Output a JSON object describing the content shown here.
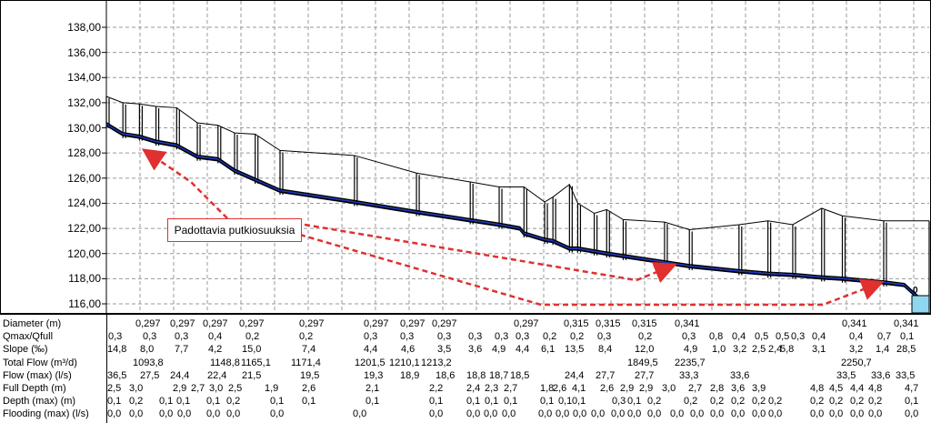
{
  "profile": {
    "y_axis_labels": [
      "138,00",
      "136,00",
      "134,00",
      "132,00",
      "130,00",
      "128,00",
      "126,00",
      "124,00",
      "122,00",
      "120,00",
      "118,00",
      "116,00"
    ],
    "ylim": [
      115.5,
      140
    ],
    "ground_line": [
      [
        0,
        132.5
      ],
      [
        4,
        132
      ],
      [
        8,
        131.9
      ],
      [
        12,
        131.7
      ],
      [
        17,
        131.6
      ],
      [
        22,
        130.4
      ],
      [
        27,
        130.2
      ],
      [
        31,
        129.6
      ],
      [
        36,
        129.5
      ],
      [
        42,
        128.2
      ],
      [
        60,
        127.8
      ],
      [
        75,
        126.4
      ],
      [
        88,
        125.7
      ],
      [
        95,
        125.3
      ],
      [
        101,
        125.3
      ],
      [
        106,
        124.1
      ],
      [
        108,
        124.5
      ],
      [
        112,
        125.5
      ],
      [
        114,
        124.0
      ],
      [
        118,
        123.2
      ],
      [
        121,
        123.5
      ],
      [
        125,
        122.7
      ],
      [
        135,
        122.5
      ],
      [
        141,
        121.9
      ],
      [
        153,
        122.3
      ],
      [
        160,
        122.6
      ],
      [
        166,
        122.3
      ],
      [
        173,
        123.6
      ],
      [
        178,
        123.0
      ],
      [
        188,
        122.6
      ],
      [
        199,
        122.6
      ]
    ],
    "pipe_invert": [
      [
        0,
        130.2
      ],
      [
        4,
        129.4
      ],
      [
        8,
        129.2
      ],
      [
        12,
        128.8
      ],
      [
        17,
        128.5
      ],
      [
        22,
        127.6
      ],
      [
        27,
        127.4
      ],
      [
        31,
        126.5
      ],
      [
        42,
        124.9
      ],
      [
        60,
        124.0
      ],
      [
        75,
        123.2
      ],
      [
        95,
        122.2
      ],
      [
        100,
        121.9
      ],
      [
        101,
        121.5
      ],
      [
        106,
        121.0
      ],
      [
        108,
        120.9
      ],
      [
        112,
        120.3
      ],
      [
        114,
        120.3
      ],
      [
        121,
        119.9
      ],
      [
        125,
        119.7
      ],
      [
        135,
        119.2
      ],
      [
        141,
        118.9
      ],
      [
        153,
        118.5
      ],
      [
        160,
        118.3
      ],
      [
        166,
        118.2
      ],
      [
        173,
        118.0
      ],
      [
        178,
        117.9
      ],
      [
        188,
        117.6
      ],
      [
        193,
        117.4
      ],
      [
        196,
        116.5
      ],
      [
        199,
        115.8
      ]
    ],
    "callout_text": "Padottavia putkiosuuksia",
    "outlet_label": "0",
    "colors": {
      "pipe_inner": "#1a36c8",
      "pipe_outer": "#000000",
      "water": "#8fd7f0",
      "arrow": "#e03030",
      "grid": "#9a9a9a"
    }
  },
  "table": {
    "rows": [
      {
        "label": "Diameter (m)",
        "cells": [
          [
            "149",
            "0,297"
          ],
          [
            "187",
            "0,297"
          ],
          [
            "223",
            "0,297"
          ],
          [
            "263",
            "0,297"
          ],
          [
            "329",
            "0,297"
          ],
          [
            "400",
            "0,297"
          ],
          [
            "440",
            "0,297"
          ],
          [
            "475",
            "0,297"
          ],
          [
            "565",
            "0,297"
          ],
          [
            "620",
            "0,315"
          ],
          [
            "655",
            "0,315"
          ],
          [
            "695",
            "0,315"
          ],
          [
            "742",
            "0,341"
          ],
          [
            "926",
            "0,341"
          ],
          [
            "983",
            "0,341"
          ]
        ]
      },
      {
        "label": "Qmax/Qfull",
        "cells": [
          [
            "119",
            "0,3"
          ],
          [
            "157",
            "0,3"
          ],
          [
            "192",
            "0,3"
          ],
          [
            "229",
            "0,4"
          ],
          [
            "270",
            "0,2"
          ],
          [
            "329",
            "0,2"
          ],
          [
            "400",
            "0,3"
          ],
          [
            "440",
            "0,3"
          ],
          [
            "481",
            "0,3"
          ],
          [
            "515",
            "0,3"
          ],
          [
            "544",
            "0,3"
          ],
          [
            "567",
            "0,3"
          ],
          [
            "597",
            "0,2"
          ],
          [
            "627",
            "0,2"
          ],
          [
            "657",
            "0,3"
          ],
          [
            "702",
            "0,2"
          ],
          [
            "750",
            "0,3"
          ],
          [
            "780",
            "0,8"
          ],
          [
            "805",
            "0,4"
          ],
          [
            "830",
            "0,5"
          ],
          [
            "853",
            "0,5"
          ],
          [
            "870",
            "0,3"
          ],
          [
            "893",
            "0,4"
          ],
          [
            "934",
            "0,4"
          ],
          [
            "965",
            "0,7"
          ],
          [
            "990",
            "0,1"
          ]
        ]
      },
      {
        "label": "Slope (‰)",
        "cells": [
          [
            "118",
            "14,8"
          ],
          [
            "154",
            "8,0"
          ],
          [
            "192",
            "7,7"
          ],
          [
            "229",
            "4,2"
          ],
          [
            "266",
            "15,0"
          ],
          [
            "332",
            "7,4"
          ],
          [
            "400",
            "4,4"
          ],
          [
            "441",
            "4,6"
          ],
          [
            "481",
            "3,5"
          ],
          [
            "515",
            "3,6"
          ],
          [
            "541",
            "4,9"
          ],
          [
            "567",
            "4,4"
          ],
          [
            "595",
            "6,1"
          ],
          [
            "621",
            "13,5"
          ],
          [
            "658",
            "8,4"
          ],
          [
            "698",
            "12,0"
          ],
          [
            "752",
            "4,9"
          ],
          [
            "783",
            "1,0"
          ],
          [
            "806",
            "3,2"
          ],
          [
            "827",
            "2,5"
          ],
          [
            "845",
            "2,4"
          ],
          [
            "858",
            "5,8"
          ],
          [
            "893",
            "3,1"
          ],
          [
            "934",
            "3,2"
          ],
          [
            "963",
            "1,4"
          ],
          [
            "986",
            "28,5"
          ]
        ]
      },
      {
        "label": "Total Flow (m³/d)",
        "cells": [
          [
            "146",
            "1093,8"
          ],
          [
            "231",
            "1148,8"
          ],
          [
            "265",
            "1165,1"
          ],
          [
            "320",
            "1171,4"
          ],
          [
            "390",
            "1201,5"
          ],
          [
            "428",
            "1210,1"
          ],
          [
            "463",
            "1213,2"
          ],
          [
            "690",
            "1849,5"
          ],
          [
            "742",
            "2235,7"
          ],
          [
            "925",
            "2250,7"
          ]
        ]
      },
      {
        "label": "Flow (max) (l/s)",
        "cells": [
          [
            "118",
            "36,5"
          ],
          [
            "154",
            "27,5"
          ],
          [
            "187",
            "24,4"
          ],
          [
            "228",
            "22,4"
          ],
          [
            "266",
            "21,5"
          ],
          [
            "330",
            "19,5"
          ],
          [
            "400",
            "19,3"
          ],
          [
            "440",
            "18,9"
          ],
          [
            "479",
            "18,6"
          ],
          [
            "513",
            "18,8"
          ],
          [
            "538",
            "18,7"
          ],
          [
            "561",
            "18,5"
          ],
          [
            "621",
            "24,4"
          ],
          [
            "655",
            "27,7"
          ],
          [
            "698",
            "27,7"
          ],
          [
            "747",
            "33,3"
          ],
          [
            "803",
            "33,6"
          ],
          [
            "920",
            "33,5"
          ],
          [
            "958",
            "33,6"
          ],
          [
            "985",
            "33,5"
          ]
        ]
      },
      {
        "label": "Full Depth (m)",
        "cells": [
          [
            "118",
            "2,5"
          ],
          [
            "142",
            "3,0"
          ],
          [
            "190",
            "2,9"
          ],
          [
            "210",
            "2,7"
          ],
          [
            "230",
            "3,0"
          ],
          [
            "251",
            "2,5"
          ],
          [
            "291",
            "1,9"
          ],
          [
            "332",
            "2,6"
          ],
          [
            "402",
            "2,1"
          ],
          [
            "472",
            "2,2"
          ],
          [
            "513",
            "2,4"
          ],
          [
            "533",
            "2,3"
          ],
          [
            "554",
            "2,7"
          ],
          [
            "594",
            "1,8"
          ],
          [
            "608",
            "2,6"
          ],
          [
            "629",
            "4,1"
          ],
          [
            "660",
            "2,6"
          ],
          [
            "682",
            "2,9"
          ],
          [
            "703",
            "2,9"
          ],
          [
            "728",
            "3,0"
          ],
          [
            "757",
            "2,7"
          ],
          [
            "781",
            "2,8"
          ],
          [
            "804",
            "3,6"
          ],
          [
            "827",
            "3,9"
          ],
          [
            "891",
            "4,8"
          ],
          [
            "912",
            "4,5"
          ],
          [
            "935",
            "4,4"
          ],
          [
            "955",
            "4,8"
          ],
          [
            "995",
            "4,7"
          ]
        ]
      },
      {
        "label": "Depth (max) (m)",
        "cells": [
          [
            "118",
            "0,1"
          ],
          [
            "142",
            "0,2"
          ],
          [
            "175",
            "0,1"
          ],
          [
            "194",
            "0,1"
          ],
          [
            "227",
            "0,1"
          ],
          [
            "249",
            "0,2"
          ],
          [
            "297",
            "0,1"
          ],
          [
            "332",
            "0,1"
          ],
          [
            "402",
            "0,1"
          ],
          [
            "472",
            "0,1"
          ],
          [
            "513",
            "0,1"
          ],
          [
            "533",
            "0,1"
          ],
          [
            "554",
            "0,1"
          ],
          [
            "594",
            "0,1"
          ],
          [
            "614",
            "0,1"
          ],
          [
            "629",
            "0,1"
          ],
          [
            "673",
            "0,3"
          ],
          [
            "690",
            "0,1"
          ],
          [
            "712",
            "0,2"
          ],
          [
            "752",
            "0,2"
          ],
          [
            "781",
            "0,2"
          ],
          [
            "804",
            "0,2"
          ],
          [
            "827",
            "0,2"
          ],
          [
            "845",
            "0,2"
          ],
          [
            "891",
            "0,2"
          ],
          [
            "912",
            "0,2"
          ],
          [
            "935",
            "0,2"
          ],
          [
            "955",
            "0,2"
          ],
          [
            "995",
            "0,1"
          ]
        ]
      },
      {
        "label": "Flooding (max) (l/s)",
        "cells": [
          [
            "118",
            "0,0"
          ],
          [
            "142",
            "0,0"
          ],
          [
            "175",
            "0,0"
          ],
          [
            "195",
            "0,0"
          ],
          [
            "227",
            "0,0"
          ],
          [
            "249",
            "0,0"
          ],
          [
            "297",
            "0,0"
          ],
          [
            "388",
            "0,0"
          ],
          [
            "472",
            "0,0"
          ],
          [
            "513",
            "0,0"
          ],
          [
            "532",
            "0,0"
          ],
          [
            "552",
            "0,0"
          ],
          [
            "592",
            "0,0"
          ],
          [
            "611",
            "0,0"
          ],
          [
            "630",
            "0,0"
          ],
          [
            "650",
            "0,0"
          ],
          [
            "672",
            "0,0"
          ],
          [
            "690",
            "0,0"
          ],
          [
            "712",
            "0,0"
          ],
          [
            "737",
            "0,0"
          ],
          [
            "759",
            "0,0"
          ],
          [
            "781",
            "0,0"
          ],
          [
            "804",
            "0,0"
          ],
          [
            "827",
            "0,0"
          ],
          [
            "845",
            "0,0"
          ],
          [
            "891",
            "0,0"
          ],
          [
            "912",
            "0,0"
          ],
          [
            "935",
            "0,0"
          ],
          [
            "955",
            "0,0"
          ],
          [
            "995",
            "0,0"
          ]
        ]
      }
    ]
  }
}
